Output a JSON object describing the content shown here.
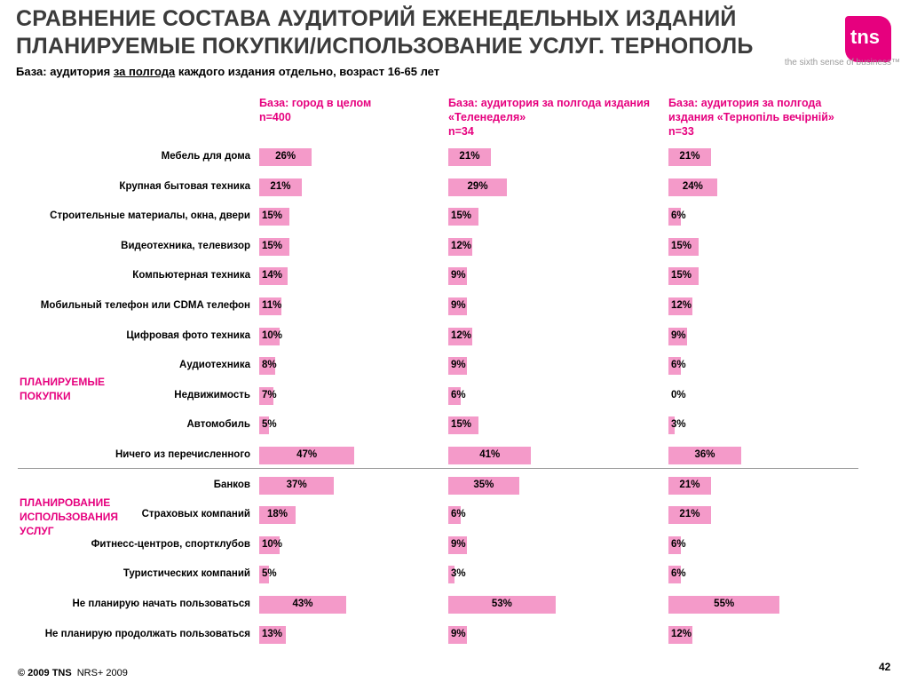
{
  "title_line1": "СРАВНЕНИЕ СОСТАВА АУДИТОРИЙ ЕЖЕНЕДЕЛЬНЫХ ИЗДАНИЙ",
  "title_line2": "ПЛАНИРУЕМЫЕ ПОКУПКИ/ИСПОЛЬЗОВАНИЕ УСЛУГ. ТЕРНОПОЛЬ",
  "logo_text": "tns",
  "tagline": "the sixth sense of business™",
  "base_pre": "База: аудитория ",
  "base_link": "за полгода",
  "base_post": " каждого издания отдельно, возраст 16-65 лет",
  "section_purchases": "ПЛАНИРУЕМЫЕ ПОКУПКИ",
  "section_services": "ПЛАНИРОВАНИЕ ИСПОЛЬЗОВАНИЯ УСЛУГ",
  "footer_copyright": "© 2009 TNS",
  "footer_source": "NRS+ 2009",
  "page_number": "42",
  "colors": {
    "accent": "#e6007e",
    "bar": "#f49ac9",
    "title": "#3b3b3b"
  },
  "chart_data": {
    "type": "bar",
    "orientation": "horizontal",
    "value_suffix": "%",
    "categories": [
      "Мебель для дома",
      "Крупная бытовая техника",
      "Строительные материалы, окна, двери",
      "Видеотехника, телевизор",
      "Компьютерная техника",
      "Мобильный телефон или CDMA телефон",
      "Цифровая фото техника",
      "Аудиотехника",
      "Недвижимость",
      "Автомобиль",
      "Ничего из перечисленного",
      "Банков",
      "Страховых компаний",
      "Фитнесс-центров, спортклубов",
      "Туристических компаний",
      "Не планирую начать пользоваться",
      "Не планирую продолжать пользоваться"
    ],
    "series": [
      {
        "name": "База: город в целом n=400",
        "name_lines": [
          "База: город в целом",
          "n=400"
        ],
        "values": [
          26,
          21,
          15,
          15,
          14,
          11,
          10,
          8,
          7,
          5,
          47,
          37,
          18,
          10,
          5,
          43,
          13
        ]
      },
      {
        "name": "База: аудитория за полгода издания «Теленеделя» n=34",
        "name_lines": [
          "База: аудитория за полгода издания",
          "«Теленеделя»",
          "n=34"
        ],
        "values": [
          21,
          29,
          15,
          12,
          9,
          9,
          12,
          9,
          6,
          15,
          41,
          35,
          6,
          9,
          3,
          53,
          9
        ]
      },
      {
        "name": "База: аудитория за полгода издания «Тернопіль вечірній» n=33",
        "name_lines": [
          "База: аудитория за полгода",
          "издания «Тернопіль вечірній»",
          "n=33"
        ],
        "values": [
          21,
          24,
          6,
          15,
          15,
          12,
          9,
          6,
          0,
          3,
          36,
          21,
          21,
          6,
          6,
          55,
          12
        ]
      }
    ]
  }
}
